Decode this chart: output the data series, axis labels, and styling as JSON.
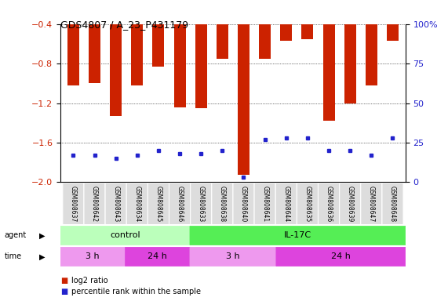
{
  "title": "GDS4807 / A_23_P431179",
  "samples": [
    "GSM808637",
    "GSM808642",
    "GSM808643",
    "GSM808634",
    "GSM808645",
    "GSM808646",
    "GSM808633",
    "GSM808638",
    "GSM808640",
    "GSM808641",
    "GSM808644",
    "GSM808635",
    "GSM808636",
    "GSM808639",
    "GSM808647",
    "GSM808648"
  ],
  "log2_ratio": [
    -1.02,
    -1.0,
    -1.33,
    -1.02,
    -0.83,
    -1.24,
    -1.25,
    -0.75,
    -1.93,
    -0.75,
    -0.57,
    -0.55,
    -1.38,
    -1.2,
    -1.02,
    -0.57
  ],
  "percentile": [
    17,
    17,
    15,
    17,
    20,
    18,
    18,
    20,
    3,
    27,
    28,
    28,
    20,
    20,
    17,
    28
  ],
  "ylim_left": [
    -2.0,
    -0.4
  ],
  "ylim_right": [
    0,
    100
  ],
  "yticks_left": [
    -2.0,
    -1.6,
    -1.2,
    -0.8,
    -0.4
  ],
  "yticks_right": [
    0,
    25,
    50,
    75,
    100
  ],
  "bar_color": "#cc2200",
  "dot_color": "#2222cc",
  "agent_groups": [
    {
      "label": "control",
      "start": 0,
      "end": 6,
      "color": "#bbffbb"
    },
    {
      "label": "IL-17C",
      "start": 6,
      "end": 16,
      "color": "#55ee55"
    }
  ],
  "time_groups": [
    {
      "label": "3 h",
      "start": 0,
      "end": 3,
      "color": "#ee99ee"
    },
    {
      "label": "24 h",
      "start": 3,
      "end": 6,
      "color": "#dd44dd"
    },
    {
      "label": "3 h",
      "start": 6,
      "end": 10,
      "color": "#ee99ee"
    },
    {
      "label": "24 h",
      "start": 10,
      "end": 16,
      "color": "#dd44dd"
    }
  ],
  "legend_items": [
    {
      "label": "log2 ratio",
      "color": "#cc2200"
    },
    {
      "label": "percentile rank within the sample",
      "color": "#2222cc"
    }
  ],
  "background_color": "#ffffff",
  "left_label_color": "#cc2200",
  "right_label_color": "#2222cc",
  "xticklabel_bg": "#dddddd"
}
